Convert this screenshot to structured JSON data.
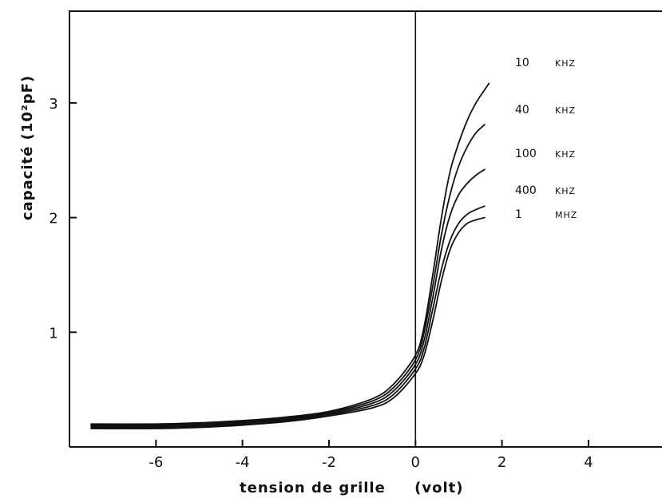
{
  "chart_data": {
    "type": "line",
    "title": "",
    "xlabel": "tension de grille     (volt)",
    "ylabel": "capacité   (10²pF)",
    "xlim": [
      -8.0,
      5.7
    ],
    "ylim": [
      0.0,
      3.8
    ],
    "xticks": [
      -6,
      -4,
      -2,
      0,
      2,
      4
    ],
    "xtick_labels": [
      "-6",
      "-4",
      "-2",
      "0",
      "2",
      "4"
    ],
    "yticks": [
      1,
      2,
      3
    ],
    "ytick_labels": [
      "1",
      "2",
      "3"
    ],
    "legend_position": "right, at curve ends",
    "series": [
      {
        "name": "10 KHZ",
        "value_label": "10",
        "unit_label": "KHZ",
        "x": [
          -7.5,
          -6,
          -5,
          -4,
          -3,
          -2,
          -1,
          -0.5,
          0,
          0.2,
          0.4,
          0.6,
          0.8,
          1.0,
          1.2,
          1.4,
          1.7
        ],
        "y": [
          0.2,
          0.2,
          0.21,
          0.23,
          0.26,
          0.31,
          0.42,
          0.55,
          0.8,
          1.05,
          1.5,
          2.0,
          2.4,
          2.65,
          2.85,
          3.0,
          3.17
        ]
      },
      {
        "name": "40 KHZ",
        "value_label": "40",
        "unit_label": "KHZ",
        "x": [
          -7.5,
          -6,
          -5,
          -4,
          -3,
          -2,
          -1,
          -0.5,
          0,
          0.2,
          0.4,
          0.6,
          0.8,
          1.0,
          1.2,
          1.4,
          1.6
        ],
        "y": [
          0.19,
          0.19,
          0.2,
          0.22,
          0.25,
          0.3,
          0.4,
          0.52,
          0.76,
          1.0,
          1.4,
          1.85,
          2.2,
          2.45,
          2.62,
          2.74,
          2.81
        ]
      },
      {
        "name": "100 KHZ",
        "value_label": "100",
        "unit_label": "KHZ",
        "x": [
          -7.5,
          -6,
          -5,
          -4,
          -3,
          -2,
          -1,
          -0.5,
          0,
          0.2,
          0.4,
          0.6,
          0.8,
          1.0,
          1.2,
          1.4,
          1.6
        ],
        "y": [
          0.18,
          0.18,
          0.19,
          0.21,
          0.24,
          0.29,
          0.38,
          0.49,
          0.72,
          0.93,
          1.3,
          1.72,
          2.02,
          2.2,
          2.3,
          2.37,
          2.42
        ]
      },
      {
        "name": "400 KHZ",
        "value_label": "400",
        "unit_label": "KHZ",
        "x": [
          -7.5,
          -6,
          -5,
          -4,
          -3,
          -2,
          -1,
          -0.5,
          0,
          0.2,
          0.4,
          0.6,
          0.8,
          1.0,
          1.2,
          1.4,
          1.6
        ],
        "y": [
          0.17,
          0.17,
          0.18,
          0.2,
          0.23,
          0.28,
          0.36,
          0.46,
          0.68,
          0.86,
          1.2,
          1.55,
          1.8,
          1.95,
          2.03,
          2.07,
          2.1
        ]
      },
      {
        "name": "1 MHZ",
        "value_label": "1",
        "unit_label": "MHZ",
        "x": [
          -7.5,
          -6,
          -5,
          -4,
          -3,
          -2,
          -1,
          -0.5,
          0,
          0.2,
          0.4,
          0.6,
          0.8,
          1.0,
          1.2,
          1.4,
          1.6
        ],
        "y": [
          0.16,
          0.16,
          0.17,
          0.19,
          0.22,
          0.27,
          0.34,
          0.43,
          0.64,
          0.8,
          1.1,
          1.45,
          1.72,
          1.87,
          1.95,
          1.98,
          2.0
        ]
      }
    ]
  }
}
